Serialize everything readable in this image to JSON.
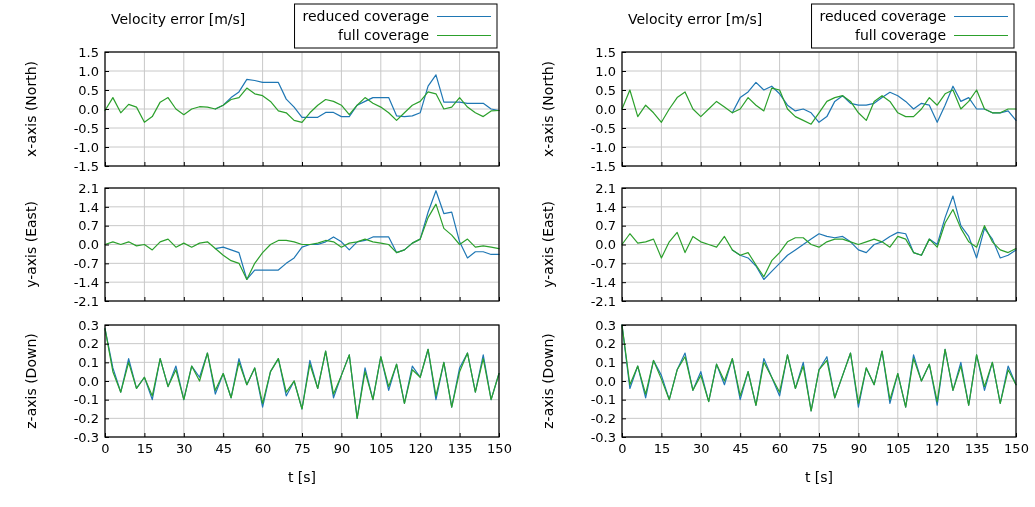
{
  "chart_data": [
    {
      "type": "line",
      "title": "Velocity error [m/s]",
      "ylabel": "x-axis (North)",
      "legend": "top right",
      "grid": true,
      "tick_labels": "y",
      "xlim": [
        0,
        150
      ],
      "xticks": [
        0,
        15,
        30,
        45,
        60,
        75,
        90,
        105,
        120,
        135,
        150
      ],
      "ylim": [
        -1.5,
        1.5
      ],
      "yticks": [
        {
          "value": 1.5,
          "label": "1.5"
        },
        {
          "value": 1,
          "label": "1.0"
        },
        {
          "value": 0.5,
          "label": "0.5"
        },
        {
          "value": 0,
          "label": "0.0"
        },
        {
          "value": -0.5,
          "label": "-0.5"
        },
        {
          "value": -1,
          "label": "-1.0"
        },
        {
          "value": -1.5,
          "label": "-1.5"
        }
      ],
      "x": [
        0,
        3,
        6,
        9,
        12,
        15,
        18,
        21,
        24,
        27,
        30,
        33,
        36,
        39,
        42,
        45,
        48,
        51,
        54,
        57,
        60,
        63,
        66,
        69,
        72,
        75,
        78,
        81,
        84,
        87,
        90,
        93,
        96,
        99,
        102,
        105,
        108,
        111,
        114,
        117,
        120,
        123,
        126,
        129,
        132,
        135,
        138,
        141,
        144,
        147,
        150
      ],
      "series": [
        {
          "name": "reduced coverage",
          "color": "#1f77b4",
          "values": [
            null,
            null,
            null,
            null,
            null,
            null,
            null,
            null,
            null,
            null,
            null,
            null,
            null,
            null,
            0,
            0.1,
            0.3,
            0.45,
            0.78,
            0.75,
            0.7,
            0.7,
            0.7,
            0.26,
            0.05,
            -0.22,
            -0.22,
            -0.22,
            -0.09,
            -0.09,
            -0.2,
            -0.2,
            0.1,
            0.2,
            0.3,
            0.3,
            0.3,
            -0.18,
            -0.2,
            -0.18,
            -0.1,
            0.6,
            0.9,
            0.18,
            0.18,
            0.18,
            0.15,
            0.15,
            0.15,
            0,
            -0.04
          ]
        },
        {
          "name": "full coverage",
          "color": "#2ca02c",
          "values": [
            -0.04,
            0.3,
            -0.1,
            0.12,
            0.05,
            -0.35,
            -0.2,
            0.18,
            0.3,
            0,
            -0.15,
            0,
            0.06,
            0.05,
            0,
            0.1,
            0.25,
            0.3,
            0.55,
            0.4,
            0.35,
            0.2,
            -0.05,
            -0.1,
            -0.3,
            -0.35,
            -0.1,
            0.1,
            0.25,
            0.2,
            0.1,
            -0.15,
            0.1,
            0.3,
            0.15,
            0.05,
            -0.1,
            -0.3,
            -0.1,
            0.1,
            0.2,
            0.45,
            0.4,
            0,
            0.05,
            0.3,
            0.05,
            -0.1,
            -0.2,
            -0.05,
            -0.04
          ]
        }
      ]
    },
    {
      "type": "line",
      "title": "Velocity error [m/s]",
      "ylabel": "x-axis (North)",
      "legend": "top right",
      "grid": true,
      "tick_labels": "y",
      "xlim": [
        0,
        150
      ],
      "xticks": [
        0,
        15,
        30,
        45,
        60,
        75,
        90,
        105,
        120,
        135,
        150
      ],
      "ylim": [
        -1.5,
        1.5
      ],
      "yticks": [
        {
          "value": 1.5,
          "label": "1.5"
        },
        {
          "value": 1,
          "label": "1.0"
        },
        {
          "value": 0.5,
          "label": "0.5"
        },
        {
          "value": 0,
          "label": "0.0"
        },
        {
          "value": -0.5,
          "label": "-0.5"
        },
        {
          "value": -1,
          "label": "-1.0"
        },
        {
          "value": -1.5,
          "label": "-1.5"
        }
      ],
      "x": [
        0,
        3,
        6,
        9,
        12,
        15,
        18,
        21,
        24,
        27,
        30,
        33,
        36,
        39,
        42,
        45,
        48,
        51,
        54,
        57,
        60,
        63,
        66,
        69,
        72,
        75,
        78,
        81,
        84,
        87,
        90,
        93,
        96,
        99,
        102,
        105,
        108,
        111,
        114,
        117,
        120,
        123,
        126,
        129,
        132,
        135,
        138,
        141,
        144,
        147,
        150
      ],
      "series": [
        {
          "name": "reduced coverage",
          "color": "#1f77b4",
          "values": [
            null,
            null,
            null,
            null,
            null,
            null,
            null,
            null,
            null,
            null,
            null,
            null,
            null,
            null,
            -0.1,
            0.3,
            0.45,
            0.7,
            0.5,
            0.6,
            0.4,
            0.1,
            -0.05,
            0,
            -0.1,
            -0.35,
            -0.2,
            0.2,
            0.35,
            0.15,
            0.1,
            0.1,
            0.15,
            0.3,
            0.44,
            0.35,
            0.2,
            0,
            0.15,
            0.1,
            -0.35,
            0.1,
            0.6,
            0.2,
            0.3,
            0,
            0,
            -0.1,
            -0.1,
            -0.05,
            -0.3
          ]
        },
        {
          "name": "full coverage",
          "color": "#2ca02c",
          "values": [
            0,
            0.5,
            -0.2,
            0.1,
            -0.1,
            -0.35,
            0,
            0.3,
            0.45,
            0,
            -0.2,
            0,
            0.2,
            0.05,
            -0.1,
            0,
            0.3,
            0.1,
            -0.05,
            0.55,
            0.5,
            0,
            -0.2,
            -0.3,
            -0.4,
            -0.1,
            0.2,
            0.3,
            0.35,
            0.2,
            -0.1,
            -0.3,
            0.2,
            0.35,
            0.2,
            -0.1,
            -0.2,
            -0.2,
            0,
            0.3,
            0.1,
            0.4,
            0.5,
            0,
            0.2,
            0.5,
            0,
            -0.1,
            -0.1,
            0,
            0
          ]
        }
      ]
    },
    {
      "type": "line",
      "ylabel": "y-axis (East)",
      "grid": true,
      "tick_labels": "y",
      "xlim": [
        0,
        150
      ],
      "xticks": [
        0,
        15,
        30,
        45,
        60,
        75,
        90,
        105,
        120,
        135,
        150
      ],
      "ylim": [
        -2.1,
        2.1
      ],
      "yticks": [
        2.1,
        1.4,
        0.7,
        {
          "value": 0,
          "label": "0.0"
        },
        -0.7,
        -1.4,
        -2.1
      ],
      "x": [
        0,
        3,
        6,
        9,
        12,
        15,
        18,
        21,
        24,
        27,
        30,
        33,
        36,
        39,
        42,
        45,
        48,
        51,
        54,
        57,
        60,
        63,
        66,
        69,
        72,
        75,
        78,
        81,
        84,
        87,
        90,
        93,
        96,
        99,
        102,
        105,
        108,
        111,
        114,
        117,
        120,
        123,
        126,
        129,
        132,
        135,
        138,
        141,
        144,
        147,
        150
      ],
      "series": [
        {
          "color": "#1f77b4",
          "values": [
            null,
            null,
            null,
            null,
            null,
            null,
            null,
            null,
            null,
            null,
            null,
            null,
            null,
            null,
            -0.15,
            -0.1,
            -0.2,
            -0.3,
            -1.3,
            -0.95,
            -0.95,
            -0.95,
            -0.95,
            -0.7,
            -0.5,
            -0.1,
            0,
            0,
            0.1,
            0.28,
            0.1,
            -0.2,
            0.1,
            0.15,
            0.28,
            0.28,
            0.28,
            -0.3,
            -0.2,
            0.05,
            0.2,
            1.2,
            2.0,
            1.15,
            1.2,
            0.1,
            -0.5,
            -0.27,
            -0.27,
            -0.37,
            -0.37
          ]
        },
        {
          "color": "#2ca02c",
          "values": [
            0,
            0.1,
            0,
            0.1,
            -0.05,
            0,
            -0.2,
            0.1,
            0.2,
            -0.1,
            0.05,
            -0.1,
            0.05,
            0.1,
            -0.15,
            -0.4,
            -0.6,
            -0.7,
            -1.3,
            -0.7,
            -0.3,
            0,
            0.15,
            0.15,
            0.1,
            0,
            0,
            0.05,
            0.15,
            0.1,
            -0.1,
            0.05,
            0.1,
            0.2,
            0.1,
            0.05,
            0,
            -0.3,
            -0.2,
            0.05,
            0.2,
            1.0,
            1.5,
            0.6,
            0.35,
            0,
            0.2,
            -0.1,
            -0.05,
            -0.1,
            -0.15
          ]
        }
      ]
    },
    {
      "type": "line",
      "ylabel": "y-axis (East)",
      "grid": true,
      "tick_labels": "y",
      "xlim": [
        0,
        150
      ],
      "xticks": [
        0,
        15,
        30,
        45,
        60,
        75,
        90,
        105,
        120,
        135,
        150
      ],
      "ylim": [
        -2.1,
        2.1
      ],
      "yticks": [
        2.1,
        1.4,
        0.7,
        {
          "value": 0,
          "label": "0.0"
        },
        -0.7,
        -1.4,
        -2.1
      ],
      "x": [
        0,
        3,
        6,
        9,
        12,
        15,
        18,
        21,
        24,
        27,
        30,
        33,
        36,
        39,
        42,
        45,
        48,
        51,
        54,
        57,
        60,
        63,
        66,
        69,
        72,
        75,
        78,
        81,
        84,
        87,
        90,
        93,
        96,
        99,
        102,
        105,
        108,
        111,
        114,
        117,
        120,
        123,
        126,
        129,
        132,
        135,
        138,
        141,
        144,
        147,
        150
      ],
      "series": [
        {
          "color": "#1f77b4",
          "values": [
            null,
            null,
            null,
            null,
            null,
            null,
            null,
            null,
            null,
            null,
            null,
            null,
            null,
            null,
            -0.2,
            -0.4,
            -0.5,
            -0.8,
            -1.3,
            -1.0,
            -0.7,
            -0.4,
            -0.2,
            0,
            0.2,
            0.4,
            0.3,
            0.25,
            0.3,
            0.1,
            -0.2,
            -0.3,
            0,
            0.1,
            0.3,
            0.45,
            0.4,
            -0.3,
            -0.4,
            0.2,
            0,
            1.0,
            1.8,
            0.7,
            0.3,
            -0.5,
            0.6,
            0.2,
            -0.5,
            -0.4,
            -0.2
          ]
        },
        {
          "color": "#2ca02c",
          "values": [
            0,
            0.4,
            0.05,
            0.1,
            0.2,
            -0.5,
            0.1,
            0.45,
            -0.3,
            0.3,
            0.1,
            0,
            -0.1,
            0.3,
            -0.2,
            -0.4,
            -0.3,
            -0.76,
            -1.2,
            -0.6,
            -0.3,
            0.1,
            0.25,
            0.25,
            0,
            -0.1,
            0.1,
            0.2,
            0.2,
            0.1,
            0,
            0.1,
            0.2,
            0.1,
            -0.1,
            0.3,
            0.2,
            -0.3,
            -0.4,
            0.2,
            -0.1,
            0.8,
            1.3,
            0.6,
            0.1,
            -0.1,
            0.7,
            0.1,
            -0.2,
            -0.3,
            -0.15
          ]
        }
      ]
    },
    {
      "type": "line",
      "ylabel": "z-axis (Down)",
      "xlabel": "t [s]",
      "grid": true,
      "xlim": [
        0,
        150
      ],
      "xticks": [
        0,
        15,
        30,
        45,
        60,
        75,
        90,
        105,
        120,
        135,
        150
      ],
      "ylim": [
        -0.3,
        0.3
      ],
      "yticks": [
        0.3,
        0.2,
        0.1,
        {
          "value": 0,
          "label": "0.0"
        },
        -0.1,
        -0.2,
        -0.3
      ],
      "x": [
        0,
        3,
        6,
        9,
        12,
        15,
        18,
        21,
        24,
        27,
        30,
        33,
        36,
        39,
        42,
        45,
        48,
        51,
        54,
        57,
        60,
        63,
        66,
        69,
        72,
        75,
        78,
        81,
        84,
        87,
        90,
        93,
        96,
        99,
        102,
        105,
        108,
        111,
        114,
        117,
        120,
        123,
        126,
        129,
        132,
        135,
        138,
        141,
        144,
        147,
        150
      ],
      "series": [
        {
          "color": "#1f77b4",
          "values": [
            0.28,
            0.07,
            -0.06,
            0.12,
            -0.04,
            0.02,
            -0.1,
            0.12,
            -0.03,
            0.08,
            -0.1,
            0.08,
            0.02,
            0.15,
            -0.07,
            0.04,
            -0.09,
            0.12,
            -0.02,
            0.07,
            -0.14,
            0.05,
            0.12,
            -0.08,
            0,
            -0.15,
            0.11,
            -0.04,
            0.16,
            -0.09,
            0.03,
            0.14,
            -0.2,
            0.07,
            -0.1,
            0.13,
            -0.05,
            0.09,
            -0.12,
            0.08,
            0.02,
            0.17,
            -0.1,
            0.1,
            -0.14,
            0.07,
            0.15,
            -0.06,
            0.14,
            -0.1,
            0.04
          ]
        },
        {
          "color": "#2ca02c",
          "values": [
            0.28,
            0.05,
            -0.06,
            0.1,
            -0.04,
            0.02,
            -0.08,
            0.12,
            -0.03,
            0.06,
            -0.1,
            0.08,
            0,
            0.15,
            -0.05,
            0.04,
            -0.09,
            0.1,
            -0.02,
            0.07,
            -0.12,
            0.05,
            0.12,
            -0.06,
            0,
            -0.15,
            0.09,
            -0.04,
            0.16,
            -0.07,
            0.03,
            0.14,
            -0.2,
            0.05,
            -0.1,
            0.13,
            -0.03,
            0.09,
            -0.12,
            0.06,
            0.02,
            0.17,
            -0.08,
            0.1,
            -0.14,
            0.05,
            0.15,
            -0.06,
            0.12,
            -0.1,
            0.04
          ]
        }
      ]
    },
    {
      "type": "line",
      "ylabel": "z-axis (Down)",
      "xlabel": "t [s]",
      "grid": true,
      "xlim": [
        0,
        150
      ],
      "xticks": [
        0,
        15,
        30,
        45,
        60,
        75,
        90,
        105,
        120,
        135,
        150
      ],
      "ylim": [
        -0.3,
        0.3
      ],
      "yticks": [
        0.3,
        0.2,
        0.1,
        {
          "value": 0,
          "label": "0.0"
        },
        -0.1,
        -0.2,
        -0.3
      ],
      "x": [
        0,
        3,
        6,
        9,
        12,
        15,
        18,
        21,
        24,
        27,
        30,
        33,
        36,
        39,
        42,
        45,
        48,
        51,
        54,
        57,
        60,
        63,
        66,
        69,
        72,
        75,
        78,
        81,
        84,
        87,
        90,
        93,
        96,
        99,
        102,
        105,
        108,
        111,
        114,
        117,
        120,
        123,
        126,
        129,
        132,
        135,
        138,
        141,
        144,
        147,
        150
      ],
      "series": [
        {
          "color": "#1f77b4",
          "values": [
            0.3,
            -0.04,
            0.08,
            -0.09,
            0.11,
            0.03,
            -0.1,
            0.06,
            0.15,
            -0.05,
            0.05,
            -0.11,
            0.09,
            -0.02,
            0.12,
            -0.1,
            0.05,
            -0.13,
            0.12,
            0.02,
            -0.08,
            0.14,
            -0.04,
            0.1,
            -0.16,
            0.06,
            0.13,
            -0.09,
            0.03,
            0.15,
            -0.14,
            0.07,
            -0.02,
            0.16,
            -0.12,
            0.04,
            -0.14,
            0.14,
            0,
            0.09,
            -0.13,
            0.17,
            -0.05,
            0.1,
            -0.13,
            0.14,
            -0.05,
            0.1,
            -0.12,
            0.08,
            -0.02
          ]
        },
        {
          "color": "#2ca02c",
          "values": [
            0.3,
            -0.02,
            0.08,
            -0.07,
            0.11,
            0.01,
            -0.1,
            0.06,
            0.13,
            -0.05,
            0.03,
            -0.11,
            0.09,
            0,
            0.12,
            -0.08,
            0.05,
            -0.13,
            0.1,
            0.02,
            -0.06,
            0.14,
            -0.04,
            0.08,
            -0.16,
            0.06,
            0.11,
            -0.09,
            0.03,
            0.15,
            -0.12,
            0.07,
            -0.02,
            0.16,
            -0.1,
            0.04,
            -0.14,
            0.12,
            0,
            0.09,
            -0.11,
            0.17,
            -0.05,
            0.08,
            -0.13,
            0.14,
            -0.03,
            0.1,
            -0.12,
            0.06,
            -0.02
          ]
        }
      ]
    }
  ]
}
